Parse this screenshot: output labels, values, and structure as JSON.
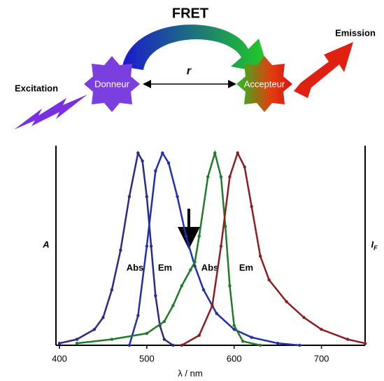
{
  "diagram": {
    "title": "FRET",
    "donor": "Donneur",
    "acceptor": "Accepteur",
    "distance": "r",
    "excitation": "Excitation",
    "emission": "Emission"
  },
  "chart_data": {
    "type": "line",
    "x_label": "λ / nm",
    "y_label": "A",
    "y2_label": "IF",
    "xlim": [
      396,
      750
    ],
    "xticks": [
      400,
      500,
      600,
      700
    ],
    "ylim": [
      0,
      1
    ],
    "series": [
      {
        "name": "Abs",
        "color": "#2b2b86",
        "x": [
          400,
          420,
          440,
          450,
          460,
          470,
          480,
          490,
          495,
          500,
          505,
          510,
          515,
          520,
          530
        ],
        "values": [
          0.01,
          0.03,
          0.08,
          0.14,
          0.28,
          0.48,
          0.75,
          0.97,
          0.93,
          0.75,
          0.5,
          0.25,
          0.1,
          0.03,
          0
        ]
      },
      {
        "name": "Em",
        "color": "#1f2fb0",
        "x": [
          480,
          490,
          500,
          510,
          518,
          525,
          535,
          545,
          555,
          565,
          580,
          600,
          620,
          650,
          675
        ],
        "values": [
          0,
          0.15,
          0.5,
          0.88,
          0.97,
          0.92,
          0.75,
          0.55,
          0.4,
          0.28,
          0.16,
          0.08,
          0.04,
          0.01,
          0
        ]
      },
      {
        "name": "Abs",
        "color": "#1f7a2a",
        "x": [
          420,
          460,
          500,
          520,
          530,
          540,
          550,
          555,
          560,
          570,
          578,
          585,
          590,
          595,
          600,
          610,
          630
        ],
        "values": [
          0.01,
          0.03,
          0.06,
          0.12,
          0.2,
          0.3,
          0.38,
          0.42,
          0.55,
          0.85,
          0.97,
          0.85,
          0.6,
          0.3,
          0.1,
          0.02,
          0
        ]
      },
      {
        "name": "Em",
        "color": "#8a1f1f",
        "x": [
          540,
          560,
          575,
          585,
          595,
          604,
          612,
          620,
          630,
          640,
          660,
          680,
          700,
          730,
          750
        ],
        "values": [
          0,
          0.05,
          0.2,
          0.5,
          0.85,
          0.97,
          0.9,
          0.7,
          0.45,
          0.33,
          0.22,
          0.14,
          0.08,
          0.03,
          0.01
        ]
      }
    ]
  }
}
